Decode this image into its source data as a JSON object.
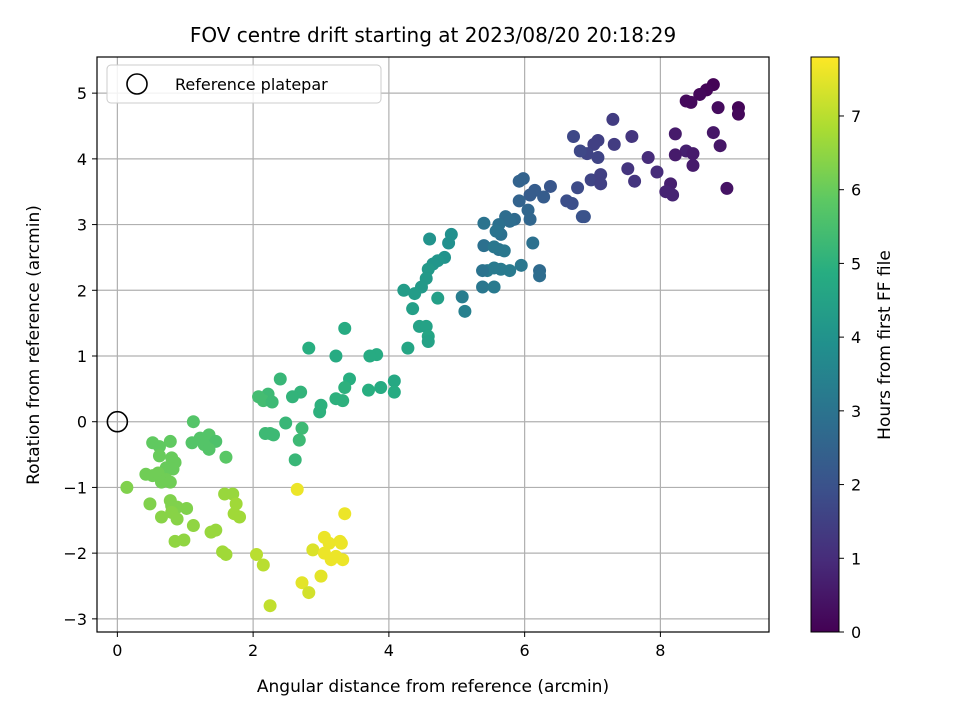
{
  "chart_data": {
    "type": "scatter",
    "title": "FOV centre drift starting at 2023/08/20 20:18:29",
    "xlabel": "Angular distance from reference (arcmin)",
    "ylabel": "Rotation from reference (arcmin)",
    "xlim": [
      -0.3,
      9.6
    ],
    "ylim": [
      -3.2,
      5.55
    ],
    "xticks": [
      0,
      2,
      4,
      6,
      8
    ],
    "yticks": [
      -3,
      -2,
      -1,
      0,
      1,
      2,
      3,
      4,
      5
    ],
    "grid": true,
    "legend": {
      "location": "top-left",
      "entries": [
        "Reference platepar"
      ]
    },
    "reference_point": {
      "x": 0,
      "y": 0
    },
    "colorbar": {
      "label": "Hours from first FF file",
      "colormap": "viridis",
      "range": [
        0,
        7.8
      ],
      "ticks": [
        0,
        1,
        2,
        3,
        4,
        5,
        6,
        7
      ]
    },
    "series": [
      {
        "points": [
          [
            8.78,
            5.13
          ],
          [
            8.68,
            5.05
          ],
          [
            8.58,
            4.98
          ],
          [
            8.38,
            4.88
          ],
          [
            8.45,
            4.86
          ],
          [
            8.85,
            4.78
          ],
          [
            9.15,
            4.78
          ],
          [
            9.15,
            4.68
          ],
          [
            8.22,
            4.38
          ],
          [
            8.78,
            4.4
          ],
          [
            8.88,
            4.2
          ],
          [
            8.38,
            4.12
          ],
          [
            8.48,
            4.08
          ],
          [
            8.22,
            4.06
          ],
          [
            8.48,
            3.9
          ],
          [
            8.15,
            3.62
          ],
          [
            8.08,
            3.5
          ],
          [
            8.18,
            3.45
          ],
          [
            8.98,
            3.55
          ],
          [
            7.95,
            3.8
          ],
          [
            7.82,
            4.02
          ],
          [
            7.58,
            4.34
          ],
          [
            7.52,
            3.85
          ],
          [
            7.62,
            3.66
          ],
          [
            7.3,
            4.6
          ],
          [
            7.32,
            4.22
          ],
          [
            7.08,
            4.28
          ],
          [
            7.02,
            4.22
          ],
          [
            6.92,
            4.08
          ],
          [
            6.72,
            4.34
          ],
          [
            6.82,
            4.12
          ],
          [
            7.08,
            4.02
          ],
          [
            6.98,
            3.68
          ],
          [
            7.12,
            3.76
          ],
          [
            7.12,
            3.62
          ],
          [
            6.78,
            3.56
          ],
          [
            6.7,
            3.32
          ],
          [
            6.62,
            3.36
          ],
          [
            6.88,
            3.12
          ],
          [
            6.85,
            3.12
          ],
          [
            6.38,
            3.58
          ],
          [
            6.28,
            3.42
          ],
          [
            6.15,
            3.52
          ],
          [
            6.08,
            3.45
          ],
          [
            5.98,
            3.7
          ],
          [
            5.92,
            3.66
          ],
          [
            5.92,
            3.36
          ],
          [
            6.05,
            3.22
          ],
          [
            6.08,
            3.08
          ],
          [
            5.85,
            3.08
          ],
          [
            5.72,
            3.12
          ],
          [
            5.78,
            3.05
          ],
          [
            5.62,
            3.0
          ],
          [
            5.65,
            2.85
          ],
          [
            5.4,
            3.02
          ],
          [
            5.58,
            2.9
          ],
          [
            5.62,
            2.62
          ],
          [
            5.4,
            2.68
          ],
          [
            5.55,
            2.66
          ],
          [
            5.7,
            2.6
          ],
          [
            6.12,
            2.72
          ],
          [
            6.22,
            2.3
          ],
          [
            6.22,
            2.22
          ],
          [
            5.95,
            2.38
          ],
          [
            5.78,
            2.3
          ],
          [
            5.65,
            2.32
          ],
          [
            5.55,
            2.34
          ],
          [
            5.45,
            2.3
          ],
          [
            5.38,
            2.3
          ],
          [
            5.38,
            2.05
          ],
          [
            5.55,
            2.05
          ],
          [
            5.08,
            1.9
          ],
          [
            5.12,
            1.68
          ],
          [
            4.92,
            2.85
          ],
          [
            4.88,
            2.72
          ],
          [
            4.82,
            2.5
          ],
          [
            4.72,
            2.45
          ],
          [
            4.65,
            2.4
          ],
          [
            4.58,
            2.32
          ],
          [
            4.6,
            2.78
          ],
          [
            4.55,
            2.18
          ],
          [
            4.48,
            2.05
          ],
          [
            4.38,
            1.95
          ],
          [
            4.22,
            2.0
          ],
          [
            4.35,
            1.72
          ],
          [
            4.72,
            1.88
          ],
          [
            4.45,
            1.45
          ],
          [
            4.55,
            1.45
          ],
          [
            4.58,
            1.3
          ],
          [
            4.58,
            1.22
          ],
          [
            4.28,
            1.12
          ],
          [
            3.82,
            1.02
          ],
          [
            3.72,
            1.0
          ],
          [
            3.35,
            1.42
          ],
          [
            3.22,
            1.0
          ],
          [
            2.82,
            1.12
          ],
          [
            4.08,
            0.62
          ],
          [
            4.08,
            0.45
          ],
          [
            3.88,
            0.52
          ],
          [
            3.7,
            0.48
          ],
          [
            3.42,
            0.65
          ],
          [
            3.35,
            0.52
          ],
          [
            3.32,
            0.32
          ],
          [
            3.22,
            0.35
          ],
          [
            3.0,
            0.25
          ],
          [
            2.98,
            0.15
          ],
          [
            2.7,
            0.45
          ],
          [
            2.58,
            0.38
          ],
          [
            2.4,
            0.65
          ],
          [
            2.22,
            0.42
          ],
          [
            2.08,
            0.38
          ],
          [
            2.15,
            0.32
          ],
          [
            2.28,
            0.3
          ],
          [
            2.48,
            -0.02
          ],
          [
            2.72,
            -0.1
          ],
          [
            2.68,
            -0.28
          ],
          [
            2.18,
            -0.18
          ],
          [
            2.25,
            -0.18
          ],
          [
            2.3,
            -0.2
          ],
          [
            2.62,
            -0.58
          ],
          [
            1.12,
            0.0
          ],
          [
            1.35,
            -0.2
          ],
          [
            1.22,
            -0.25
          ],
          [
            1.45,
            -0.3
          ],
          [
            1.1,
            -0.32
          ],
          [
            1.28,
            -0.35
          ],
          [
            1.35,
            -0.42
          ],
          [
            1.6,
            -0.54
          ],
          [
            0.52,
            -0.32
          ],
          [
            0.62,
            -0.38
          ],
          [
            0.78,
            -0.3
          ],
          [
            0.62,
            -0.52
          ],
          [
            0.8,
            -0.55
          ],
          [
            0.72,
            -0.7
          ],
          [
            0.85,
            -0.62
          ],
          [
            0.82,
            -0.72
          ],
          [
            0.42,
            -0.8
          ],
          [
            0.52,
            -0.82
          ],
          [
            0.6,
            -0.78
          ],
          [
            0.72,
            -0.88
          ],
          [
            0.65,
            -0.92
          ],
          [
            0.78,
            -0.92
          ],
          [
            0.14,
            -1.0
          ],
          [
            0.48,
            -1.25
          ],
          [
            0.78,
            -1.2
          ],
          [
            0.8,
            -1.28
          ],
          [
            0.88,
            -1.3
          ],
          [
            1.02,
            -1.32
          ],
          [
            0.8,
            -1.38
          ],
          [
            0.88,
            -1.48
          ],
          [
            0.65,
            -1.45
          ],
          [
            1.12,
            -1.58
          ],
          [
            0.85,
            -1.82
          ],
          [
            0.98,
            -1.8
          ],
          [
            1.38,
            -1.68
          ],
          [
            1.45,
            -1.65
          ],
          [
            1.55,
            -1.98
          ],
          [
            1.6,
            -2.02
          ],
          [
            1.58,
            -1.1
          ],
          [
            1.7,
            -1.1
          ],
          [
            1.75,
            -1.25
          ],
          [
            1.72,
            -1.4
          ],
          [
            1.8,
            -1.45
          ],
          [
            2.05,
            -2.02
          ],
          [
            2.15,
            -2.18
          ],
          [
            2.25,
            -2.8
          ],
          [
            2.65,
            -1.03
          ],
          [
            2.72,
            -2.45
          ],
          [
            2.82,
            -2.6
          ],
          [
            2.88,
            -1.95
          ],
          [
            3.0,
            -2.35
          ],
          [
            3.05,
            -1.76
          ],
          [
            3.05,
            -2.0
          ],
          [
            3.12,
            -1.85
          ],
          [
            3.15,
            -2.1
          ],
          [
            3.22,
            -2.05
          ],
          [
            3.28,
            -1.82
          ],
          [
            3.32,
            -2.1
          ],
          [
            3.3,
            -1.85
          ],
          [
            3.35,
            -1.4
          ]
        ],
        "hours": [
          0.05,
          0.1,
          0.15,
          0.2,
          0.2,
          0.25,
          0.1,
          0.15,
          0.6,
          0.5,
          0.5,
          0.7,
          0.6,
          0.6,
          0.6,
          0.7,
          0.8,
          0.8,
          0.4,
          1.0,
          1.0,
          1.2,
          1.2,
          1.2,
          1.4,
          1.4,
          1.5,
          1.5,
          1.6,
          1.7,
          1.7,
          1.6,
          1.6,
          1.5,
          1.5,
          1.8,
          1.9,
          1.9,
          2.0,
          2.0,
          2.1,
          2.3,
          2.3,
          2.3,
          2.5,
          2.5,
          2.5,
          2.6,
          2.6,
          2.7,
          2.8,
          2.8,
          2.9,
          2.9,
          3.0,
          3.0,
          3.0,
          2.9,
          3.1,
          3.1,
          2.9,
          2.7,
          2.8,
          3.1,
          3.2,
          3.2,
          3.2,
          3.2,
          3.0,
          3.1,
          3.2,
          3.3,
          3.4,
          3.9,
          3.9,
          4.0,
          4.1,
          4.1,
          4.2,
          4.0,
          4.2,
          4.2,
          4.3,
          4.3,
          4.4,
          4.4,
          4.5,
          4.5,
          4.6,
          4.5,
          4.6,
          4.8,
          4.8,
          4.8,
          4.8,
          4.9,
          4.7,
          4.8,
          4.8,
          4.9,
          4.9,
          5.0,
          5.0,
          5.0,
          5.0,
          5.0,
          5.1,
          5.1,
          5.2,
          5.3,
          5.4,
          5.4,
          5.3,
          5.2,
          5.3,
          5.3,
          5.3,
          5.3,
          5.3,
          5.2,
          5.7,
          5.7,
          5.7,
          5.6,
          5.7,
          5.7,
          5.7,
          5.8,
          5.9,
          5.9,
          5.9,
          6.0,
          6.0,
          6.0,
          6.0,
          6.0,
          6.1,
          6.1,
          6.1,
          6.1,
          6.1,
          6.1,
          6.3,
          6.3,
          6.3,
          6.3,
          6.3,
          6.3,
          6.4,
          6.4,
          6.4,
          6.5,
          6.5,
          6.5,
          6.6,
          6.6,
          6.7,
          6.7,
          6.6,
          6.6,
          6.7,
          6.7,
          6.7,
          7.0,
          7.0,
          7.1,
          7.6,
          7.5,
          7.3,
          7.4,
          7.5,
          7.6,
          7.6,
          7.6,
          7.6,
          7.6,
          7.6,
          7.6,
          7.6,
          7.6
        ]
      }
    ]
  }
}
